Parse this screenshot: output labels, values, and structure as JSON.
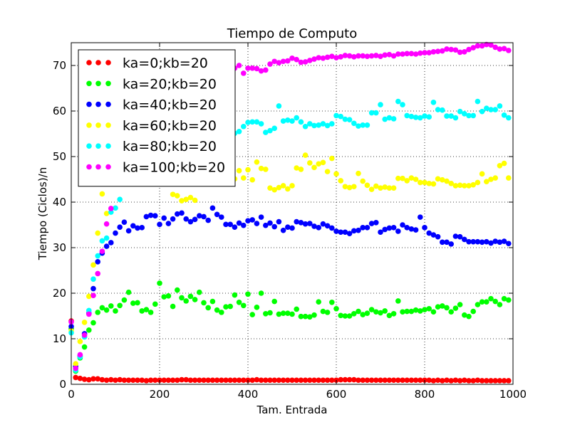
{
  "chart_data": {
    "type": "scatter",
    "title": "Tiempo de Computo",
    "xlabel": "Tam. Entrada",
    "ylabel": "Tiempo (Ciclos)/n",
    "xlim": [
      0,
      1000
    ],
    "ylim": [
      0,
      75
    ],
    "xticks": [
      0,
      200,
      400,
      600,
      800,
      1000
    ],
    "yticks": [
      0,
      10,
      20,
      30,
      40,
      50,
      60,
      70
    ],
    "grid": true,
    "legend_position": "top-left",
    "series": [
      {
        "name": "ka=0;kb=20",
        "color": "#ff0000",
        "x": [
          0,
          10,
          20,
          30,
          40,
          50,
          60,
          70,
          80,
          90,
          100,
          110,
          120,
          130,
          140,
          150,
          160,
          170,
          180,
          190,
          200,
          210,
          220,
          230,
          240,
          250,
          260,
          270,
          280,
          290,
          300,
          310,
          320,
          330,
          340,
          350,
          360,
          370,
          380,
          390,
          400,
          410,
          420,
          430,
          440,
          450,
          460,
          470,
          480,
          490,
          500,
          510,
          520,
          530,
          540,
          550,
          560,
          570,
          580,
          590,
          600,
          610,
          620,
          630,
          640,
          650,
          660,
          670,
          680,
          690,
          700,
          710,
          720,
          730,
          740,
          750,
          760,
          770,
          780,
          790,
          800,
          810,
          820,
          830,
          840,
          850,
          860,
          870,
          880,
          890,
          900,
          910,
          920,
          930,
          940,
          950,
          960,
          970,
          980,
          990
        ],
        "y": [
          13.9,
          1.5,
          1.3,
          1.1,
          1.0,
          1.2,
          1.2,
          1.0,
          0.9,
          1.0,
          0.9,
          1.0,
          0.9,
          0.9,
          0.9,
          0.9,
          0.9,
          0.8,
          0.9,
          0.9,
          0.9,
          0.9,
          0.9,
          0.9,
          0.9,
          1.0,
          1.0,
          0.9,
          0.9,
          0.9,
          0.9,
          0.9,
          0.9,
          0.9,
          0.9,
          0.9,
          0.9,
          0.9,
          0.9,
          0.9,
          0.9,
          0.9,
          1.0,
          0.9,
          0.9,
          0.9,
          0.9,
          0.9,
          0.9,
          0.9,
          0.9,
          0.9,
          0.9,
          0.9,
          0.9,
          0.9,
          0.9,
          0.9,
          0.9,
          0.9,
          0.9,
          1.0,
          1.0,
          1.0,
          1.0,
          0.9,
          0.9,
          0.9,
          0.9,
          0.9,
          0.9,
          0.9,
          0.9,
          0.9,
          0.9,
          0.9,
          0.9,
          0.9,
          0.9,
          0.9,
          0.9,
          0.9,
          0.8,
          0.9,
          0.8,
          0.9,
          0.8,
          0.9,
          0.8,
          0.9,
          0.8,
          0.8,
          0.9,
          0.8,
          0.8,
          0.8,
          0.8,
          0.8,
          0.8,
          0.8
        ]
      },
      {
        "name": "ka=20;kb=20",
        "color": "#00ff00",
        "x": [
          0,
          10,
          20,
          30,
          40,
          50,
          60,
          70,
          80,
          90,
          100,
          110,
          120,
          130,
          140,
          150,
          160,
          170,
          180,
          190,
          200,
          210,
          220,
          230,
          240,
          250,
          260,
          270,
          280,
          290,
          300,
          310,
          320,
          330,
          340,
          350,
          360,
          370,
          380,
          390,
          400,
          410,
          420,
          430,
          440,
          450,
          460,
          470,
          480,
          490,
          500,
          510,
          520,
          530,
          540,
          550,
          560,
          570,
          580,
          590,
          600,
          610,
          620,
          630,
          640,
          650,
          660,
          670,
          680,
          690,
          700,
          710,
          720,
          730,
          740,
          750,
          760,
          770,
          780,
          790,
          800,
          810,
          820,
          830,
          840,
          850,
          860,
          870,
          880,
          890,
          900,
          910,
          920,
          930,
          940,
          950,
          960,
          970,
          980,
          990
        ],
        "y": [
          12.2,
          2.9,
          5.8,
          8.2,
          11.9,
          13.5,
          15.8,
          16.8,
          16.3,
          17.2,
          16.1,
          17.3,
          18.5,
          20.2,
          17.8,
          17.9,
          16.1,
          16.4,
          15.8,
          17.6,
          22.2,
          19.2,
          19.4,
          17.1,
          20.7,
          19.0,
          18.3,
          19.3,
          18.6,
          20.2,
          17.9,
          16.8,
          18.2,
          16.3,
          15.8,
          17.0,
          17.1,
          19.6,
          18.0,
          17.3,
          19.8,
          15.3,
          16.9,
          20.0,
          15.5,
          15.7,
          18.2,
          15.4,
          15.6,
          15.6,
          15.4,
          16.5,
          14.9,
          14.9,
          14.8,
          15.2,
          18.1,
          16.0,
          15.8,
          18.0,
          16.6,
          15.1,
          15.0,
          15.0,
          15.5,
          16.0,
          15.3,
          15.6,
          16.4,
          15.9,
          15.7,
          16.1,
          15.1,
          15.5,
          18.3,
          15.9,
          16.0,
          16.0,
          16.3,
          16.1,
          16.4,
          16.6,
          15.9,
          17.0,
          17.2,
          16.8,
          15.9,
          16.7,
          17.5,
          15.2,
          14.9,
          16.0,
          17.5,
          18.1,
          18.1,
          18.8,
          18.2,
          17.5,
          18.8,
          18.5
        ]
      },
      {
        "name": "ka=40;kb=20",
        "color": "#0000ff",
        "x": [
          0,
          10,
          20,
          30,
          40,
          50,
          60,
          70,
          80,
          90,
          100,
          110,
          120,
          130,
          140,
          150,
          160,
          170,
          180,
          190,
          200,
          210,
          220,
          230,
          240,
          250,
          260,
          270,
          280,
          290,
          300,
          310,
          320,
          330,
          340,
          350,
          360,
          370,
          380,
          390,
          400,
          410,
          420,
          430,
          440,
          450,
          460,
          470,
          480,
          490,
          500,
          510,
          520,
          530,
          540,
          550,
          560,
          570,
          580,
          590,
          600,
          610,
          620,
          630,
          640,
          650,
          660,
          670,
          680,
          690,
          700,
          710,
          720,
          730,
          740,
          750,
          760,
          770,
          780,
          790,
          800,
          810,
          820,
          830,
          840,
          850,
          860,
          870,
          880,
          890,
          900,
          910,
          920,
          930,
          940,
          950,
          960,
          970,
          980,
          990
        ],
        "y": [
          12.7,
          3.9,
          6.2,
          11.1,
          15.6,
          21.0,
          26.9,
          28.8,
          30.3,
          31.1,
          33.2,
          34.5,
          35.6,
          33.7,
          34.8,
          34.3,
          34.4,
          36.8,
          37.1,
          37.0,
          35.1,
          36.5,
          35.3,
          36.3,
          37.4,
          37.6,
          36.3,
          35.7,
          36.2,
          37.0,
          36.8,
          36.0,
          38.7,
          37.3,
          36.7,
          35.1,
          35.1,
          34.5,
          35.4,
          34.9,
          35.9,
          36.1,
          35.3,
          36.7,
          34.9,
          35.4,
          34.6,
          35.7,
          33.8,
          34.5,
          34.3,
          35.7,
          35.5,
          35.2,
          35.3,
          34.7,
          34.4,
          35.2,
          34.8,
          34.3,
          33.6,
          33.4,
          33.4,
          33.1,
          33.7,
          33.8,
          34.4,
          34.4,
          35.3,
          35.5,
          33.4,
          34.0,
          34.3,
          34.4,
          33.6,
          35.0,
          34.4,
          34.1,
          33.9,
          36.7,
          34.4,
          33.2,
          32.8,
          32.4,
          31.2,
          31.2,
          30.8,
          32.5,
          32.4,
          31.8,
          31.3,
          31.3,
          31.3,
          31.2,
          31.3,
          31.0,
          31.4,
          31.2,
          31.4,
          30.9
        ]
      },
      {
        "name": "ka=60;kb=20",
        "color": "#ffff00",
        "x": [
          0,
          10,
          20,
          30,
          40,
          50,
          60,
          70,
          80,
          90,
          100,
          110,
          120,
          130,
          140,
          150,
          160,
          170,
          180,
          190,
          200,
          210,
          220,
          230,
          240,
          250,
          260,
          270,
          280,
          290,
          300,
          310,
          320,
          330,
          340,
          350,
          360,
          370,
          380,
          390,
          400,
          410,
          420,
          430,
          440,
          450,
          460,
          470,
          480,
          490,
          500,
          510,
          520,
          530,
          540,
          550,
          560,
          570,
          580,
          590,
          600,
          610,
          620,
          630,
          640,
          650,
          660,
          670,
          680,
          690,
          700,
          710,
          720,
          730,
          740,
          750,
          760,
          770,
          780,
          790,
          800,
          810,
          820,
          830,
          840,
          850,
          860,
          870,
          880,
          890,
          900,
          910,
          920,
          930,
          940,
          950,
          960,
          970,
          980,
          990
        ],
        "y": [
          11.7,
          4.5,
          9.4,
          13.6,
          19.3,
          26.2,
          33.2,
          41.8,
          37.5,
          45.3,
          45.3,
          46.7,
          48.4,
          49.0,
          47.6,
          46.1,
          46.0,
          45.9,
          44.2,
          46.0,
          45.5,
          44.6,
          44.7,
          41.7,
          41.4,
          40.3,
          40.6,
          41.0,
          40.4,
          45.4,
          44.4,
          47.1,
          46.0,
          48.8,
          47.9,
          45.8,
          44.3,
          45.1,
          46.9,
          45.3,
          47.1,
          44.9,
          48.8,
          47.4,
          47.2,
          43.1,
          42.7,
          43.2,
          43.6,
          42.9,
          43.6,
          47.5,
          47.2,
          50.3,
          48.6,
          47.6,
          48.4,
          48.7,
          46.7,
          49.6,
          46.2,
          44.7,
          43.4,
          43.2,
          43.4,
          46.3,
          44.6,
          43.7,
          42.8,
          43.5,
          43.1,
          43.3,
          43.1,
          43.1,
          45.2,
          45.2,
          44.7,
          45.3,
          45.0,
          44.3,
          44.3,
          44.1,
          44.0,
          45.1,
          44.9,
          44.6,
          44.1,
          43.6,
          43.7,
          43.6,
          43.6,
          43.8,
          44.3,
          46.2,
          44.5,
          45.0,
          45.3,
          48.0,
          48.5,
          45.3
        ]
      },
      {
        "name": "ka=80;kb=20",
        "color": "#00ffff",
        "x": [
          0,
          10,
          20,
          30,
          40,
          50,
          60,
          70,
          80,
          90,
          100,
          110,
          120,
          130,
          140,
          150,
          160,
          170,
          180,
          190,
          200,
          210,
          220,
          230,
          240,
          250,
          260,
          270,
          280,
          290,
          300,
          310,
          320,
          330,
          340,
          350,
          360,
          370,
          380,
          390,
          400,
          410,
          420,
          430,
          440,
          450,
          460,
          470,
          480,
          490,
          500,
          510,
          520,
          530,
          540,
          550,
          560,
          570,
          580,
          590,
          600,
          610,
          620,
          630,
          640,
          650,
          660,
          670,
          680,
          690,
          700,
          710,
          720,
          730,
          740,
          750,
          760,
          770,
          780,
          790,
          800,
          810,
          820,
          830,
          840,
          850,
          860,
          870,
          880,
          890,
          900,
          910,
          920,
          930,
          940,
          950,
          960,
          970,
          980,
          990
        ],
        "y": [
          11.3,
          3.1,
          6.0,
          10.4,
          16.2,
          23.1,
          28.2,
          31.5,
          32.1,
          37.8,
          38.7,
          40.6,
          47.5,
          50.6,
          52.6,
          54.1,
          56.2,
          56.0,
          54.4,
          57.3,
          55.2,
          55.8,
          55.1,
          56.7,
          56.0,
          53.3,
          53.6,
          56.8,
          55.8,
          55.2,
          57.4,
          56.2,
          56.3,
          55.1,
          55.3,
          56.5,
          56.3,
          55.1,
          55.5,
          56.6,
          57.5,
          57.6,
          57.6,
          57.2,
          55.3,
          55.7,
          56.2,
          61.1,
          57.8,
          58.0,
          57.8,
          58.5,
          57.6,
          56.6,
          57.2,
          56.8,
          56.9,
          57.2,
          56.8,
          57.2,
          59.0,
          58.8,
          58.2,
          58.1,
          57.3,
          56.7,
          56.9,
          56.9,
          59.6,
          59.6,
          61.4,
          58.2,
          58.5,
          58.3,
          62.1,
          61.4,
          59.0,
          58.8,
          58.6,
          58.5,
          58.9,
          58.7,
          61.9,
          60.3,
          60.2,
          58.9,
          58.9,
          58.5,
          59.9,
          59.4,
          59.0,
          59.0,
          62.1,
          59.9,
          60.6,
          60.3,
          60.3,
          61.1,
          59.1,
          58.5
        ]
      },
      {
        "name": "ka=100;kb=20",
        "color": "#ff00ff",
        "x": [
          0,
          10,
          20,
          30,
          40,
          50,
          60,
          70,
          80,
          90,
          100,
          110,
          120,
          130,
          140,
          150,
          160,
          170,
          180,
          190,
          200,
          210,
          220,
          230,
          240,
          250,
          260,
          270,
          280,
          290,
          300,
          310,
          320,
          330,
          340,
          350,
          360,
          370,
          380,
          390,
          400,
          410,
          420,
          430,
          440,
          450,
          460,
          470,
          480,
          490,
          500,
          510,
          520,
          530,
          540,
          550,
          560,
          570,
          580,
          590,
          600,
          610,
          620,
          630,
          640,
          650,
          660,
          670,
          680,
          690,
          700,
          710,
          720,
          730,
          740,
          750,
          760,
          770,
          780,
          790,
          800,
          810,
          820,
          830,
          840,
          850,
          860,
          870,
          880,
          890,
          900,
          910,
          920,
          930,
          940,
          950,
          960,
          970,
          980,
          990
        ],
        "y": [
          13.7,
          3.5,
          6.5,
          10.8,
          15.4,
          19.5,
          24.3,
          29.2,
          35.2,
          38.6,
          48.0,
          52.4,
          55.9,
          59.9,
          62.5,
          63.9,
          64.9,
          66.0,
          66.4,
          66.9,
          67.4,
          67.6,
          68.5,
          68.2,
          68.4,
          68.0,
          69.3,
          69.1,
          69.1,
          69.2,
          69.5,
          68.9,
          69.0,
          69.4,
          69.4,
          69.3,
          69.4,
          69.4,
          70.0,
          68.3,
          69.4,
          69.4,
          69.3,
          68.8,
          69.0,
          70.3,
          70.9,
          70.6,
          70.9,
          71.0,
          71.6,
          71.3,
          70.7,
          70.8,
          71.1,
          71.4,
          71.7,
          71.6,
          71.8,
          72.0,
          71.7,
          71.9,
          72.2,
          72.1,
          71.9,
          72.1,
          72.1,
          72.0,
          72.1,
          72.2,
          72.0,
          72.3,
          72.4,
          72.1,
          72.5,
          72.5,
          72.6,
          72.6,
          72.5,
          72.7,
          72.8,
          72.8,
          73.0,
          73.1,
          73.2,
          73.6,
          73.5,
          73.4,
          72.9,
          73.0,
          73.5,
          73.9,
          74.3,
          74.3,
          74.6,
          74.5,
          74.0,
          73.6,
          73.7,
          73.3
        ]
      }
    ]
  }
}
